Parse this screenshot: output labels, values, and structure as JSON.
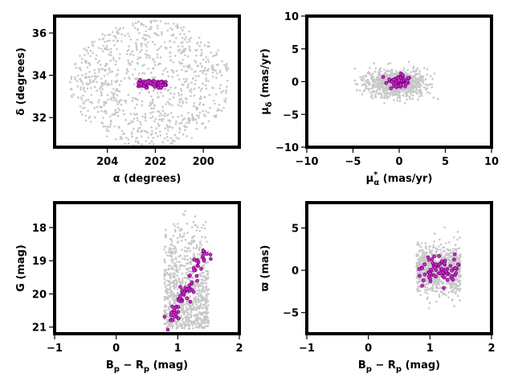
{
  "chart_data": [
    {
      "type": "scatter",
      "panel": "sky-position",
      "xlabel": "α (degrees)",
      "ylabel": "δ (degrees)",
      "xlim": [
        206.2,
        198.5
      ],
      "ylim": [
        30.6,
        36.8
      ],
      "x_inverted": true,
      "xticks": [
        204,
        202,
        200
      ],
      "yticks": [
        32,
        34,
        36
      ],
      "grid": false,
      "field_color": "#c8c8c8",
      "member_color": "#800080",
      "field_model": {
        "center_x": 202.2,
        "center_y": 33.6,
        "radius_x": 3.35,
        "radius_y": 3.0,
        "n_points": 900
      },
      "members_summary": {
        "center_x": 202.15,
        "center_y": 33.6,
        "spread_x": 0.6,
        "spread_y": 0.2,
        "n_points": 70
      }
    },
    {
      "type": "scatter",
      "panel": "proper-motion",
      "xlabel": "μ*α (mas/yr)",
      "ylabel": "μδ (mas/yr)",
      "xlim": [
        -10,
        10
      ],
      "ylim": [
        -10,
        10
      ],
      "xticks": [
        -10,
        -5,
        0,
        5,
        10
      ],
      "yticks": [
        -10,
        -5,
        0,
        5,
        10
      ],
      "grid": false,
      "field_color": "#c8c8c8",
      "member_color": "#800080",
      "field_model": {
        "center_x": -0.3,
        "center_y": -0.2,
        "sigma_x": 1.6,
        "sigma_y": 1.0,
        "xrange": [
          -4.8,
          4.2
        ],
        "yrange": [
          -3.3,
          3.2
        ],
        "n_points": 900
      },
      "members_summary": {
        "center_x": 0.0,
        "center_y": 0.0,
        "sigma_x": 0.6,
        "sigma_y": 0.5,
        "n_points": 70
      }
    },
    {
      "type": "scatter",
      "panel": "color-magnitude",
      "xlabel": "Bp − Rp (mag)",
      "ylabel": "G (mag)",
      "xlim": [
        -1,
        2
      ],
      "ylim": [
        21.2,
        17.25
      ],
      "y_inverted": true,
      "xticks": [
        -1,
        0,
        1,
        2
      ],
      "yticks": [
        18,
        19,
        20,
        21
      ],
      "grid": false,
      "field_color": "#c8c8c8",
      "member_color": "#800080",
      "field_model": {
        "xrange": [
          0.78,
          1.5
        ],
        "yrange": [
          17.45,
          21.05
        ],
        "n_points": 900
      },
      "members_summary": {
        "x_at_faint": 0.85,
        "y_faint": 20.95,
        "x_at_bright": 1.45,
        "y_bright": 18.75,
        "n_points": 70
      }
    },
    {
      "type": "scatter",
      "panel": "parallax",
      "xlabel": "Bp − Rp (mag)",
      "ylabel": "ϖ (mas)",
      "xlim": [
        -1,
        2
      ],
      "ylim": [
        -7.5,
        8
      ],
      "xticks": [
        -1,
        0,
        1,
        2
      ],
      "yticks": [
        -5,
        0,
        5
      ],
      "grid": false,
      "field_color": "#c8c8c8",
      "member_color": "#800080",
      "field_model": {
        "xrange": [
          0.78,
          1.5
        ],
        "center_y": 0.0,
        "sigma_y": 1.4,
        "yrange": [
          -6.8,
          7.2
        ],
        "n_points": 900
      },
      "members_summary": {
        "xrange": [
          0.82,
          1.48
        ],
        "center_y": 0.0,
        "sigma_y": 0.9,
        "yrange": [
          -3.2,
          2.9
        ],
        "n_points": 70
      }
    }
  ]
}
